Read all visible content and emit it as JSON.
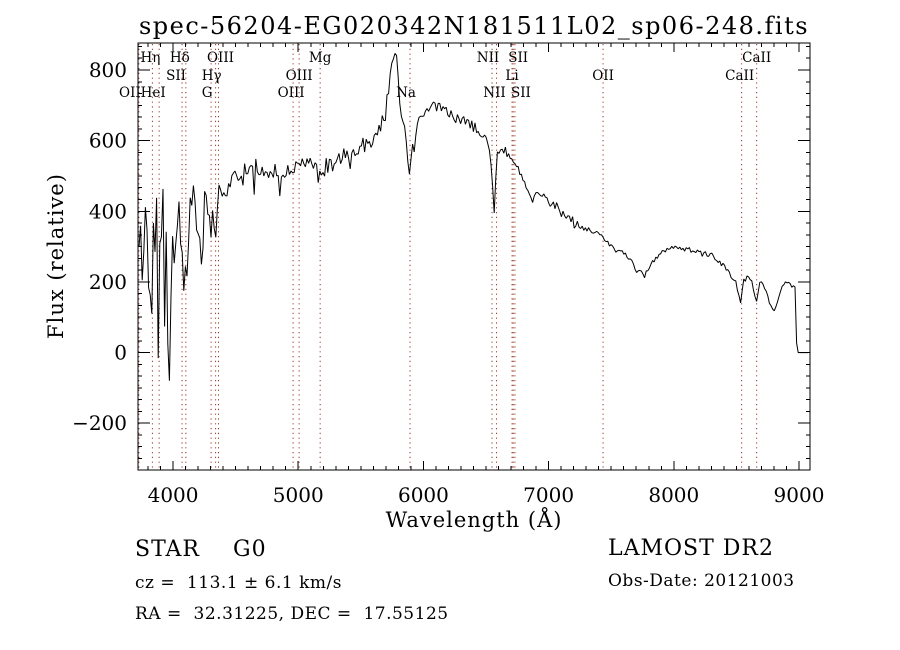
{
  "chart_data": {
    "type": "line",
    "title": "spec-56204-EG020342N181511L02_sp06-248.fits",
    "xlabel": "Wavelength (Å)",
    "ylabel": "Flux (relative)",
    "xlim": [
      3720,
      9088
    ],
    "ylim": [
      -332.5,
      876.5
    ],
    "x_ticks": [
      4000,
      5000,
      6000,
      7000,
      8000,
      9000
    ],
    "y_ticks": [
      -200,
      0,
      200,
      400,
      600,
      800
    ],
    "x_minor_step": 100,
    "y_minor_divisions": 6,
    "grid": false,
    "line_color": "#000000",
    "marker_line_color": "#993322",
    "noise_seed": 42,
    "spectral_line_markers": [
      {
        "label": "Hη",
        "wavelength": 3835,
        "row": 1,
        "dx": -2
      },
      {
        "label": "Hδ",
        "wavelength": 4102,
        "row": 1,
        "dx": -6
      },
      {
        "label": "OIII",
        "wavelength": 4363,
        "row": 1,
        "dx": 2
      },
      {
        "label": "Mg",
        "wavelength": 5175,
        "row": 1,
        "dx": 0
      },
      {
        "label": "NII",
        "wavelength": 6548,
        "row": 1,
        "dx": -4
      },
      {
        "label": "SII",
        "wavelength": 6717,
        "row": 1,
        "dx": 5
      },
      {
        "label": "CaII",
        "wavelength": 8662,
        "row": 1,
        "dx": 0
      },
      {
        "label": "SII",
        "wavelength": 4072,
        "row": 2,
        "dx": -6
      },
      {
        "label": "Hγ",
        "wavelength": 4340,
        "row": 2,
        "dx": -4
      },
      {
        "label": "OIII",
        "wavelength": 5007,
        "row": 2,
        "dx": 0
      },
      {
        "label": "Li",
        "wavelength": 6708,
        "row": 2,
        "dx": 0
      },
      {
        "label": "OII",
        "wavelength": 7435,
        "row": 2,
        "dx": 0
      },
      {
        "label": "CaII",
        "wavelength": 8542,
        "row": 2,
        "dx": -2
      },
      {
        "label": "OII",
        "wavelength": 3727,
        "row": 3,
        "dx": -9
      },
      {
        "label": "HeI",
        "wavelength": 3889,
        "row": 3,
        "dx": -6
      },
      {
        "label": "G",
        "wavelength": 4304,
        "row": 3,
        "dx": -4
      },
      {
        "label": "OIII",
        "wavelength": 4959,
        "row": 3,
        "dx": -2
      },
      {
        "label": "Na",
        "wavelength": 5893,
        "row": 3,
        "dx": -4
      },
      {
        "label": "NII",
        "wavelength": 6584,
        "row": 3,
        "dx": -2
      },
      {
        "label": "SII",
        "wavelength": 6731,
        "row": 3,
        "dx": 6
      }
    ],
    "series": [
      {
        "name": "spectrum",
        "description": "flux envelope anchors: [wavelength_A, flux, noise_amplitude]",
        "anchors": [
          [
            3722,
            250,
            280
          ],
          [
            3740,
            300,
            320
          ],
          [
            3760,
            280,
            330
          ],
          [
            3780,
            330,
            310
          ],
          [
            3800,
            360,
            300
          ],
          [
            3820,
            300,
            290
          ],
          [
            3835,
            220,
            270
          ],
          [
            3855,
            380,
            260
          ],
          [
            3870,
            350,
            250
          ],
          [
            3889,
            230,
            240
          ],
          [
            3905,
            400,
            220
          ],
          [
            3920,
            380,
            210
          ],
          [
            3934,
            90,
            200
          ],
          [
            3950,
            400,
            190
          ],
          [
            3968,
            -150,
            170
          ],
          [
            3985,
            350,
            170
          ],
          [
            4005,
            320,
            160
          ],
          [
            4030,
            360,
            150
          ],
          [
            4055,
            340,
            150
          ],
          [
            4080,
            240,
            150
          ],
          [
            4102,
            120,
            140
          ],
          [
            4125,
            380,
            130
          ],
          [
            4150,
            420,
            120
          ],
          [
            4180,
            400,
            115
          ],
          [
            4210,
            360,
            110
          ],
          [
            4227,
            290,
            105
          ],
          [
            4255,
            430,
            100
          ],
          [
            4280,
            440,
            95
          ],
          [
            4304,
            370,
            90
          ],
          [
            4325,
            400,
            85
          ],
          [
            4340,
            330,
            85
          ],
          [
            4365,
            440,
            75
          ],
          [
            4395,
            465,
            70
          ],
          [
            4430,
            470,
            65
          ],
          [
            4470,
            480,
            60
          ],
          [
            4510,
            495,
            55
          ],
          [
            4550,
            490,
            52
          ],
          [
            4590,
            500,
            50
          ],
          [
            4640,
            510,
            48
          ],
          [
            4690,
            515,
            45
          ],
          [
            4740,
            515,
            45
          ],
          [
            4790,
            510,
            45
          ],
          [
            4830,
            520,
            42
          ],
          [
            4861,
            480,
            42
          ],
          [
            4895,
            520,
            40
          ],
          [
            4930,
            525,
            40
          ],
          [
            4970,
            520,
            40
          ],
          [
            5010,
            525,
            40
          ],
          [
            5050,
            530,
            40
          ],
          [
            5090,
            535,
            40
          ],
          [
            5130,
            530,
            40
          ],
          [
            5175,
            495,
            40
          ],
          [
            5215,
            535,
            40
          ],
          [
            5260,
            540,
            40
          ],
          [
            5310,
            550,
            40
          ],
          [
            5360,
            555,
            40
          ],
          [
            5410,
            565,
            42
          ],
          [
            5460,
            575,
            42
          ],
          [
            5510,
            585,
            42
          ],
          [
            5560,
            595,
            45
          ],
          [
            5610,
            610,
            45
          ],
          [
            5660,
            640,
            45
          ],
          [
            5700,
            690,
            45
          ],
          [
            5730,
            780,
            45
          ],
          [
            5755,
            840,
            40
          ],
          [
            5772,
            862,
            35
          ],
          [
            5790,
            810,
            40
          ],
          [
            5808,
            710,
            35
          ],
          [
            5830,
            655,
            30
          ],
          [
            5858,
            620,
            28
          ],
          [
            5880,
            520,
            22
          ],
          [
            5893,
            492,
            20
          ],
          [
            5910,
            560,
            25
          ],
          [
            5935,
            625,
            28
          ],
          [
            5965,
            655,
            30
          ],
          [
            6000,
            680,
            30
          ],
          [
            6040,
            700,
            32
          ],
          [
            6080,
            705,
            32
          ],
          [
            6120,
            695,
            32
          ],
          [
            6160,
            690,
            30
          ],
          [
            6200,
            685,
            30
          ],
          [
            6240,
            670,
            30
          ],
          [
            6280,
            660,
            30
          ],
          [
            6320,
            655,
            28
          ],
          [
            6360,
            645,
            28
          ],
          [
            6400,
            640,
            28
          ],
          [
            6440,
            625,
            26
          ],
          [
            6480,
            610,
            24
          ],
          [
            6520,
            590,
            22
          ],
          [
            6545,
            520,
            20
          ],
          [
            6563,
            395,
            15
          ],
          [
            6585,
            560,
            22
          ],
          [
            6620,
            580,
            22
          ],
          [
            6660,
            565,
            22
          ],
          [
            6700,
            550,
            22
          ],
          [
            6730,
            535,
            20
          ],
          [
            6770,
            510,
            20
          ],
          [
            6810,
            480,
            18
          ],
          [
            6850,
            445,
            16
          ],
          [
            6880,
            435,
            16
          ],
          [
            6910,
            455,
            18
          ],
          [
            6950,
            450,
            18
          ],
          [
            7000,
            425,
            18
          ],
          [
            7050,
            415,
            18
          ],
          [
            7100,
            395,
            18
          ],
          [
            7150,
            385,
            16
          ],
          [
            7200,
            370,
            16
          ],
          [
            7250,
            360,
            16
          ],
          [
            7300,
            350,
            16
          ],
          [
            7350,
            340,
            16
          ],
          [
            7400,
            335,
            15
          ],
          [
            7435,
            320,
            15
          ],
          [
            7480,
            310,
            15
          ],
          [
            7530,
            300,
            14
          ],
          [
            7580,
            285,
            14
          ],
          [
            7630,
            270,
            13
          ],
          [
            7680,
            250,
            12
          ],
          [
            7730,
            230,
            12
          ],
          [
            7770,
            222,
            12
          ],
          [
            7810,
            245,
            12
          ],
          [
            7850,
            265,
            12
          ],
          [
            7890,
            280,
            13
          ],
          [
            7930,
            290,
            13
          ],
          [
            7970,
            298,
            13
          ],
          [
            8010,
            300,
            13
          ],
          [
            8060,
            296,
            13
          ],
          [
            8110,
            292,
            13
          ],
          [
            8160,
            290,
            13
          ],
          [
            8210,
            285,
            13
          ],
          [
            8260,
            278,
            13
          ],
          [
            8310,
            270,
            13
          ],
          [
            8360,
            258,
            13
          ],
          [
            8410,
            240,
            13
          ],
          [
            8460,
            215,
            13
          ],
          [
            8500,
            195,
            12
          ],
          [
            8529,
            142,
            10
          ],
          [
            8560,
            205,
            12
          ],
          [
            8600,
            215,
            12
          ],
          [
            8630,
            200,
            12
          ],
          [
            8657,
            140,
            10
          ],
          [
            8690,
            205,
            12
          ],
          [
            8730,
            185,
            12
          ],
          [
            8770,
            135,
            11
          ],
          [
            8800,
            115,
            10
          ],
          [
            8830,
            150,
            11
          ],
          [
            8860,
            185,
            11
          ],
          [
            8890,
            205,
            10
          ],
          [
            8920,
            195,
            10
          ],
          [
            8950,
            185,
            9
          ],
          [
            8975,
            185,
            6
          ],
          [
            8982,
            0,
            0
          ],
          [
            9086,
            0,
            0
          ]
        ]
      }
    ]
  },
  "annotations": {
    "class_label": "STAR",
    "subclass": "G0",
    "cz": "cz =  113.1 ± 6.1 km/s",
    "radec": "RA =  32.31225, DEC =  17.55125",
    "survey": "LAMOST DR2",
    "obs_date": "Obs-Date: 20121003"
  }
}
